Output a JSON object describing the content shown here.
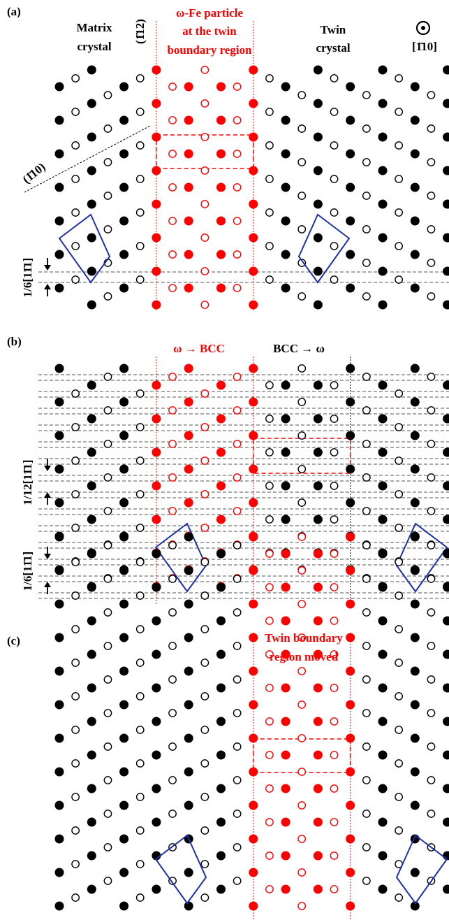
{
  "panel_a": {
    "label": "(a)",
    "matrix_label": [
      "Matrix",
      "crystal"
    ],
    "plane_label": "(1̄12)",
    "particle_label": [
      "ω-Fe particle",
      "at the twin",
      "boundary region"
    ],
    "twin_label": [
      "Twin",
      "crystal"
    ],
    "zone_axis": "[1̄10]",
    "trace_label": "(1̄10)",
    "shift_label": "1/6[11̄1]"
  },
  "panel_b": {
    "label": "(b)",
    "left_transition": "ω → BCC",
    "right_transition": "BCC → ω",
    "shift_labels": [
      "1/12[11̄1]",
      "1/6[11̄1]"
    ]
  },
  "panel_c": {
    "label": "(c)",
    "region_label": [
      "Twin boundary",
      "region moved"
    ]
  }
}
